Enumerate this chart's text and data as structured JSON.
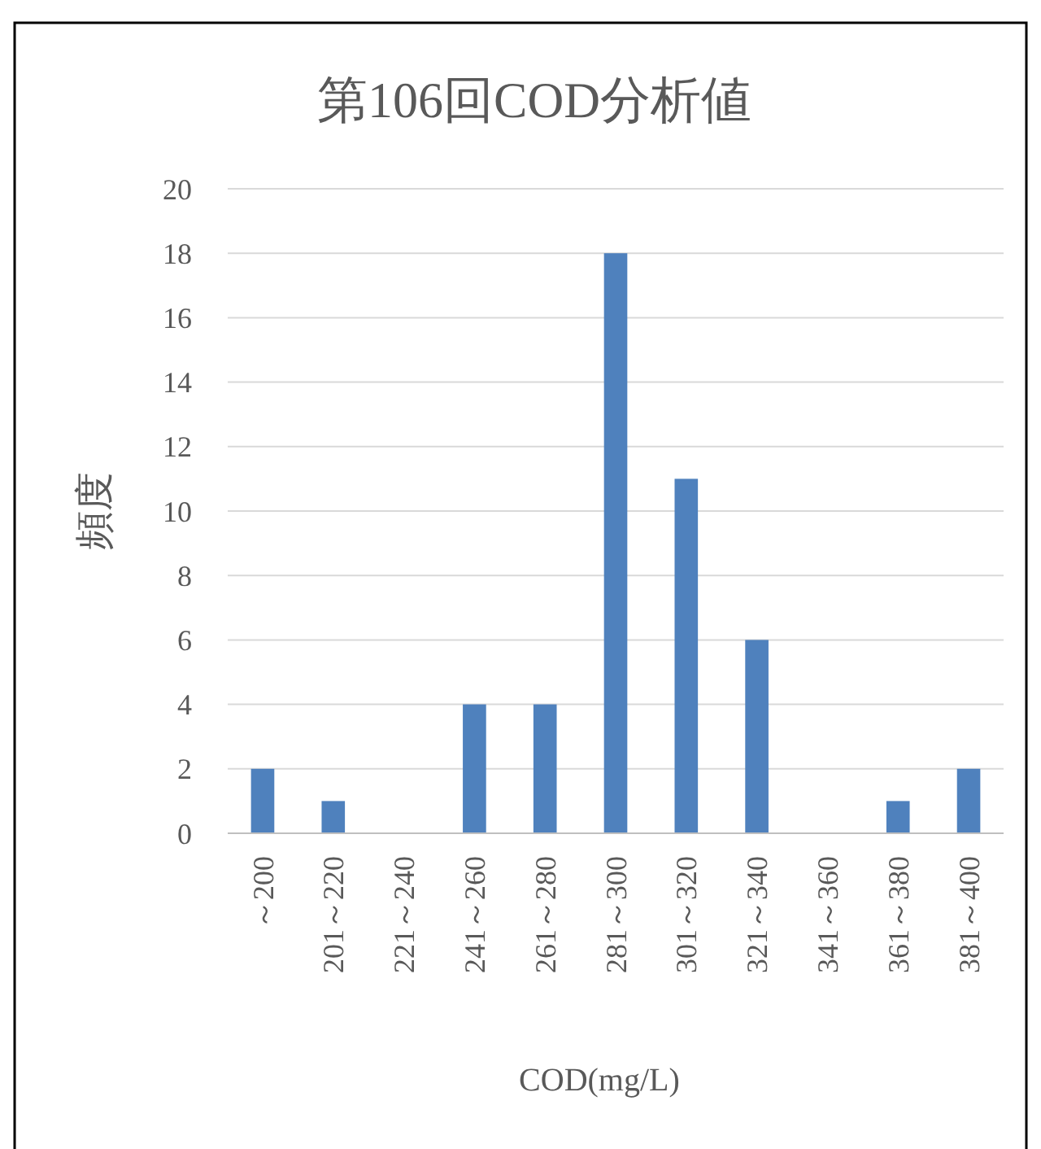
{
  "chart_data": {
    "type": "bar",
    "title": "第106回COD分析値",
    "xlabel": "COD(mg/L)",
    "ylabel": "頻度",
    "categories": [
      "～200",
      "201～220",
      "221～240",
      "241～260",
      "261～280",
      "281～300",
      "301～320",
      "321～340",
      "341～360",
      "361～380",
      "381～400"
    ],
    "values": [
      2,
      1,
      0,
      4,
      4,
      18,
      11,
      6,
      0,
      1,
      2
    ],
    "color": "#4f81bd",
    "ylim": [
      0,
      20
    ],
    "yticks": [
      0,
      2,
      4,
      6,
      8,
      10,
      12,
      14,
      16,
      18,
      20
    ],
    "grid": "y"
  }
}
